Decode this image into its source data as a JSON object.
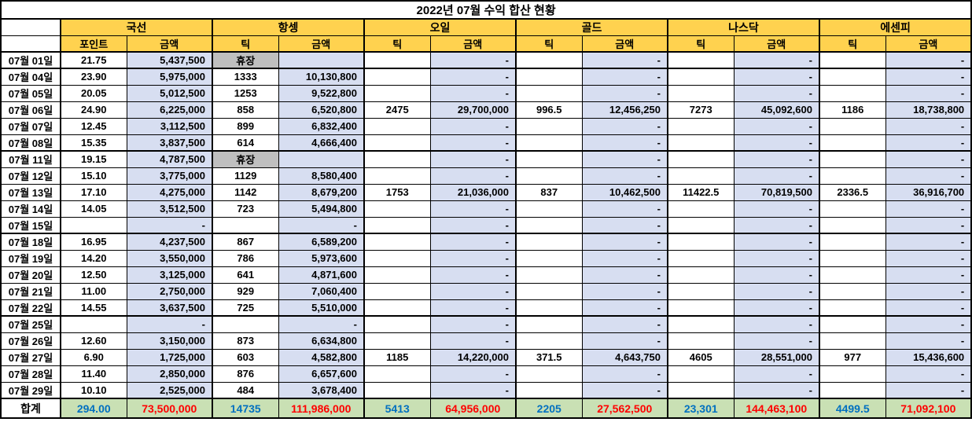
{
  "title": "2022년 07월 수익 합산 현황",
  "colors": {
    "header_bg": "#FFD24F",
    "amount_bg": "#D7DEF1",
    "closed_bg": "#BFBFBF",
    "total_bg": "#C9E0B4",
    "tick_total_text": "#0070C0",
    "amount_total_text": "#FF0000"
  },
  "table": {
    "closed_label": "휴장",
    "groups": [
      {
        "name": "국선",
        "columns": [
          "포인트",
          "금액"
        ]
      },
      {
        "name": "항셍",
        "columns": [
          "틱",
          "금액"
        ]
      },
      {
        "name": "오일",
        "columns": [
          "틱",
          "금액"
        ]
      },
      {
        "name": "골드",
        "columns": [
          "틱",
          "금액"
        ]
      },
      {
        "name": "나스닥",
        "columns": [
          "틱",
          "금액"
        ]
      },
      {
        "name": "에센피",
        "columns": [
          "틱",
          "금액"
        ]
      }
    ],
    "rows": [
      {
        "date": "07월 01일",
        "week_end": true,
        "values": [
          "21.75",
          "5,437,500",
          "휴장",
          "",
          "",
          "-",
          "",
          "-",
          "",
          "-",
          "",
          "-"
        ]
      },
      {
        "date": "07월 04일",
        "week_end": false,
        "values": [
          "23.90",
          "5,975,000",
          "1333",
          "10,130,800",
          "",
          "-",
          "",
          "-",
          "",
          "-",
          "",
          "-"
        ]
      },
      {
        "date": "07월 05일",
        "week_end": false,
        "values": [
          "20.05",
          "5,012,500",
          "1253",
          "9,522,800",
          "",
          "-",
          "",
          "-",
          "",
          "-",
          "",
          "-"
        ]
      },
      {
        "date": "07월 06일",
        "week_end": false,
        "values": [
          "24.90",
          "6,225,000",
          "858",
          "6,520,800",
          "2475",
          "29,700,000",
          "996.5",
          "12,456,250",
          "7273",
          "45,092,600",
          "1186",
          "18,738,800"
        ]
      },
      {
        "date": "07월 07일",
        "week_end": false,
        "values": [
          "12.45",
          "3,112,500",
          "899",
          "6,832,400",
          "",
          "-",
          "",
          "-",
          "",
          "-",
          "",
          "-"
        ]
      },
      {
        "date": "07월 08일",
        "week_end": true,
        "values": [
          "15.35",
          "3,837,500",
          "614",
          "4,666,400",
          "",
          "-",
          "",
          "-",
          "",
          "-",
          "",
          "-"
        ]
      },
      {
        "date": "07월 11일",
        "week_end": false,
        "values": [
          "19.15",
          "4,787,500",
          "휴장",
          "",
          "",
          "-",
          "",
          "-",
          "",
          "-",
          "",
          "-"
        ]
      },
      {
        "date": "07월 12일",
        "week_end": false,
        "values": [
          "15.10",
          "3,775,000",
          "1129",
          "8,580,400",
          "",
          "-",
          "",
          "-",
          "",
          "-",
          "",
          "-"
        ]
      },
      {
        "date": "07월 13일",
        "week_end": false,
        "values": [
          "17.10",
          "4,275,000",
          "1142",
          "8,679,200",
          "1753",
          "21,036,000",
          "837",
          "10,462,500",
          "11422.5",
          "70,819,500",
          "2336.5",
          "36,916,700"
        ]
      },
      {
        "date": "07월 14일",
        "week_end": false,
        "values": [
          "14.05",
          "3,512,500",
          "723",
          "5,494,800",
          "",
          "-",
          "",
          "-",
          "",
          "-",
          "",
          "-"
        ]
      },
      {
        "date": "07월 15일",
        "week_end": true,
        "values": [
          "",
          "-",
          "",
          "-",
          "",
          "-",
          "",
          "-",
          "",
          "-",
          "",
          "-"
        ]
      },
      {
        "date": "07월 18일",
        "week_end": false,
        "values": [
          "16.95",
          "4,237,500",
          "867",
          "6,589,200",
          "",
          "-",
          "",
          "-",
          "",
          "-",
          "",
          "-"
        ]
      },
      {
        "date": "07월 19일",
        "week_end": false,
        "values": [
          "14.20",
          "3,550,000",
          "786",
          "5,973,600",
          "",
          "-",
          "",
          "-",
          "",
          "-",
          "",
          "-"
        ]
      },
      {
        "date": "07월 20일",
        "week_end": false,
        "values": [
          "12.50",
          "3,125,000",
          "641",
          "4,871,600",
          "",
          "-",
          "",
          "-",
          "",
          "-",
          "",
          "-"
        ]
      },
      {
        "date": "07월 21일",
        "week_end": false,
        "values": [
          "11.00",
          "2,750,000",
          "929",
          "7,060,400",
          "",
          "-",
          "",
          "-",
          "",
          "-",
          "",
          "-"
        ]
      },
      {
        "date": "07월 22일",
        "week_end": true,
        "values": [
          "14.55",
          "3,637,500",
          "725",
          "5,510,000",
          "",
          "-",
          "",
          "-",
          "",
          "-",
          "",
          "-"
        ]
      },
      {
        "date": "07월 25일",
        "week_end": false,
        "values": [
          "",
          "-",
          "",
          "-",
          "",
          "-",
          "",
          "-",
          "",
          "-",
          "",
          "-"
        ]
      },
      {
        "date": "07월 26일",
        "week_end": false,
        "values": [
          "12.60",
          "3,150,000",
          "873",
          "6,634,800",
          "",
          "-",
          "",
          "-",
          "",
          "-",
          "",
          "-"
        ]
      },
      {
        "date": "07월 27일",
        "week_end": false,
        "values": [
          "6.90",
          "1,725,000",
          "603",
          "4,582,800",
          "1185",
          "14,220,000",
          "371.5",
          "4,643,750",
          "4605",
          "28,551,000",
          "977",
          "15,436,600"
        ]
      },
      {
        "date": "07월 28일",
        "week_end": false,
        "values": [
          "11.40",
          "2,850,000",
          "876",
          "6,657,600",
          "",
          "-",
          "",
          "-",
          "",
          "-",
          "",
          "-"
        ]
      },
      {
        "date": "07월 29일",
        "week_end": true,
        "values": [
          "10.10",
          "2,525,000",
          "484",
          "3,678,400",
          "",
          "-",
          "",
          "-",
          "",
          "-",
          "",
          "-"
        ]
      }
    ],
    "total": {
      "label": "합계",
      "values": [
        "294.00",
        "73,500,000",
        "14735",
        "111,986,000",
        "5413",
        "64,956,000",
        "2205",
        "27,562,500",
        "23,301",
        "144,463,100",
        "4499.5",
        "71,092,100"
      ]
    }
  }
}
